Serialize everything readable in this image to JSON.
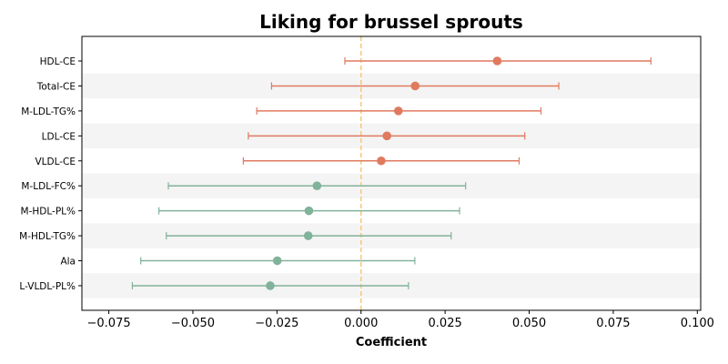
{
  "chart_data": {
    "type": "forest",
    "title": "Liking for brussel sprouts",
    "xlabel": "Coefficient",
    "xlim": [
      -0.083,
      0.101
    ],
    "xticks": [
      -0.075,
      -0.05,
      -0.025,
      0.0,
      0.025,
      0.05,
      0.075,
      0.1
    ],
    "xtick_labels": [
      "−0.075",
      "−0.050",
      "−0.025",
      "0.000",
      "0.025",
      "0.050",
      "0.075",
      "0.100"
    ],
    "reference_line": 0.0,
    "reference_line_color": "#f5c97a",
    "positive_color": "#e07a5f",
    "negative_color": "#81b29a",
    "band_color": "#f4f4f4",
    "rows": [
      {
        "label": "HDL-CE",
        "estimate": 0.0405,
        "lower": -0.0048,
        "upper": 0.0862
      },
      {
        "label": "Total-CE",
        "estimate": 0.0161,
        "lower": -0.0266,
        "upper": 0.0588
      },
      {
        "label": "M-LDL-TG%",
        "estimate": 0.0111,
        "lower": -0.031,
        "upper": 0.0535
      },
      {
        "label": "LDL-CE",
        "estimate": 0.0077,
        "lower": -0.0335,
        "upper": 0.0487
      },
      {
        "label": "VLDL-CE",
        "estimate": 0.006,
        "lower": -0.035,
        "upper": 0.047
      },
      {
        "label": "M-LDL-FC%",
        "estimate": -0.0131,
        "lower": -0.0573,
        "upper": 0.0311
      },
      {
        "label": "M-HDL-PL%",
        "estimate": -0.0155,
        "lower": -0.0601,
        "upper": 0.0293
      },
      {
        "label": "M-HDL-TG%",
        "estimate": -0.0157,
        "lower": -0.0579,
        "upper": 0.0268
      },
      {
        "label": "Ala",
        "estimate": -0.0249,
        "lower": -0.0655,
        "upper": 0.016
      },
      {
        "label": "L-VLDL-PL%",
        "estimate": -0.027,
        "lower": -0.068,
        "upper": 0.0141
      }
    ]
  }
}
